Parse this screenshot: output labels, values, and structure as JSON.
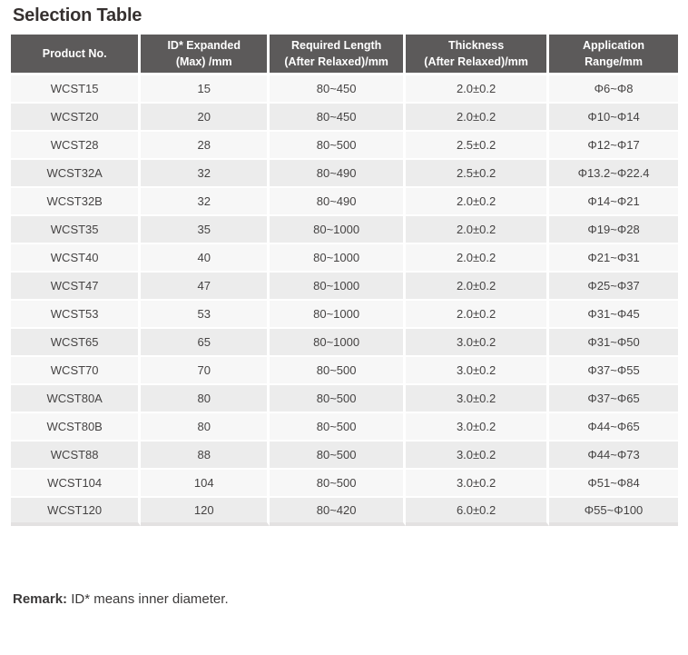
{
  "page": {
    "title": "Selection Table",
    "remark_label": "Remark:",
    "remark_text": " ID* means inner diameter."
  },
  "colors": {
    "header_bg": "#5c5a5a",
    "header_text": "#ffffff",
    "row_odd_bg": "#f7f7f7",
    "row_even_bg": "#ececec",
    "body_text": "#454343",
    "title_text": "#363130",
    "table_bottom_edge": "#e3e1e1"
  },
  "table": {
    "columns": [
      {
        "key": "product-no",
        "line1": "Product No.",
        "line2": ""
      },
      {
        "key": "id-expanded",
        "line1": "ID* Expanded",
        "line2": "(Max) /mm"
      },
      {
        "key": "required-length",
        "line1": "Required Length",
        "line2": "(After Relaxed)/mm"
      },
      {
        "key": "thickness",
        "line1": "Thickness",
        "line2": "(After Relaxed)/mm"
      },
      {
        "key": "application-range",
        "line1": "Application",
        "line2": "Range/mm"
      }
    ],
    "rows": [
      [
        "WCST15",
        "15",
        "80~450",
        "2.0±0.2",
        "Φ6~Φ8"
      ],
      [
        "WCST20",
        "20",
        "80~450",
        "2.0±0.2",
        "Φ10~Φ14"
      ],
      [
        "WCST28",
        "28",
        "80~500",
        "2.5±0.2",
        "Φ12~Φ17"
      ],
      [
        "WCST32A",
        "32",
        "80~490",
        "2.5±0.2",
        "Φ13.2~Φ22.4"
      ],
      [
        "WCST32B",
        "32",
        "80~490",
        "2.0±0.2",
        "Φ14~Φ21"
      ],
      [
        "WCST35",
        "35",
        "80~1000",
        "2.0±0.2",
        "Φ19~Φ28"
      ],
      [
        "WCST40",
        "40",
        "80~1000",
        "2.0±0.2",
        "Φ21~Φ31"
      ],
      [
        "WCST47",
        "47",
        "80~1000",
        "2.0±0.2",
        "Φ25~Φ37"
      ],
      [
        "WCST53",
        "53",
        "80~1000",
        "2.0±0.2",
        "Φ31~Φ45"
      ],
      [
        "WCST65",
        "65",
        "80~1000",
        "3.0±0.2",
        "Φ31~Φ50"
      ],
      [
        "WCST70",
        "70",
        "80~500",
        "3.0±0.2",
        "Φ37~Φ55"
      ],
      [
        "WCST80A",
        "80",
        "80~500",
        "3.0±0.2",
        "Φ37~Φ65"
      ],
      [
        "WCST80B",
        "80",
        "80~500",
        "3.0±0.2",
        "Φ44~Φ65"
      ],
      [
        "WCST88",
        "88",
        "80~500",
        "3.0±0.2",
        "Φ44~Φ73"
      ],
      [
        "WCST104",
        "104",
        "80~500",
        "3.0±0.2",
        "Φ51~Φ84"
      ],
      [
        "WCST120",
        "120",
        "80~420",
        "6.0±0.2",
        "Φ55~Φ100"
      ]
    ],
    "column_widths_pct": [
      19.5,
      19.3,
      20.4,
      21.5,
      19.3
    ]
  }
}
